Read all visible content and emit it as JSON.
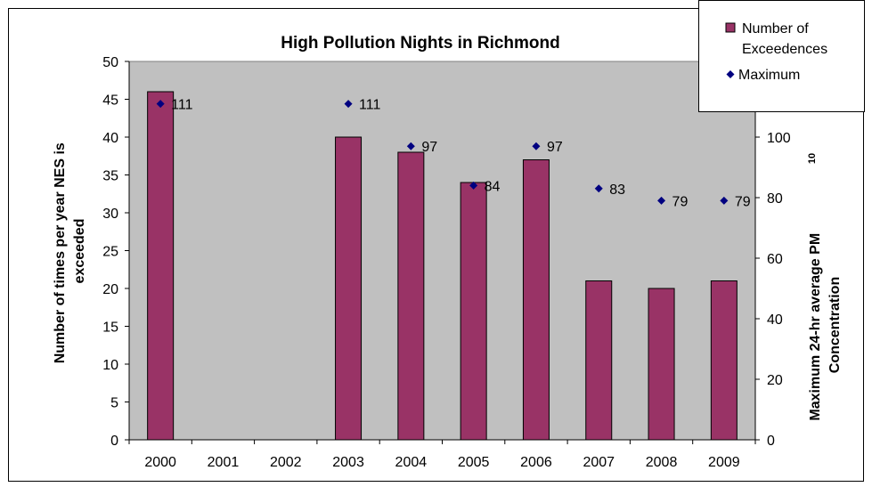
{
  "colors": {
    "bar": "#993366",
    "marker": "#000080",
    "plot_bg": "#c0c0c0",
    "border": "#000000"
  },
  "chart_data": {
    "type": "bar",
    "title": "High Pollution Nights in Richmond",
    "categories": [
      "2000",
      "2001",
      "2002",
      "2003",
      "2004",
      "2005",
      "2006",
      "2007",
      "2008",
      "2009"
    ],
    "series": [
      {
        "name": "Number of Exceedences",
        "type": "bar",
        "axis": "left",
        "values": [
          46,
          null,
          null,
          40,
          38,
          34,
          37,
          21,
          20,
          21
        ]
      },
      {
        "name": "Maximum",
        "type": "scatter",
        "axis": "right",
        "values": [
          111,
          null,
          null,
          111,
          97,
          84,
          97,
          83,
          79,
          79
        ],
        "labels": [
          "111",
          "",
          "",
          "111",
          "97",
          "84",
          "97",
          "83",
          "79",
          "79"
        ]
      }
    ],
    "ylabel": "Number of times per year NES is exceeded",
    "ylabel_lines": [
      "Number of times per year NES is",
      "exceeded"
    ],
    "y2label_lines": [
      "Maximum 24-hr average PM",
      "Concentration"
    ],
    "y2label_subscript": "10",
    "ylim": [
      0,
      50
    ],
    "y_ticks": [
      0,
      5,
      10,
      15,
      20,
      25,
      30,
      35,
      40,
      45,
      50
    ],
    "y2lim": [
      0,
      125
    ],
    "y2_ticks": [
      0,
      20,
      40,
      60,
      80,
      100
    ],
    "grid": false,
    "legend_position": "top-right",
    "legend_entries": [
      "Number of",
      "Exceedences",
      "Maximum"
    ]
  }
}
